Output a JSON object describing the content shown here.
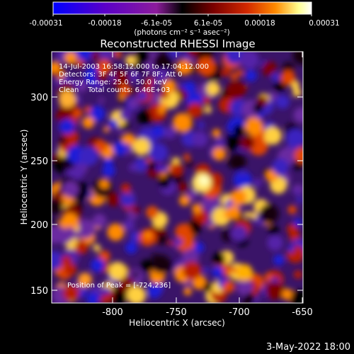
{
  "colorbar": {
    "tick_labels": [
      "-0.00031",
      "-0.00018",
      "-6.1e-05",
      "6.1e-05",
      "0.00018",
      "0.00031"
    ],
    "units_label": "(photons cm⁻² s⁻¹ asec⁻²)",
    "colormap": [
      "#0000ff",
      "#5a00c8",
      "#8c1c9c",
      "#000000",
      "#7a0000",
      "#d22800",
      "#ff8a00",
      "#ffff90",
      "#ffffff"
    ]
  },
  "image": {
    "title": "Reconstructed RHESSI Image",
    "annotation_lines": [
      "14-Jul-2003 16:58:12.000 to 17:04:12.000",
      "Detectors: 3F 4F 5F 6F 7F 8F; Att 0",
      "Energy Range: 25.0 - 50.0 keV",
      "Clean    Total counts: 6.46E+03"
    ],
    "peak_label": "Position of Peak = [-724,236]",
    "x_axis_label": "Heliocentric X (arcsec)",
    "y_axis_label": "Heliocentric Y (arcsec)",
    "x_ticks": [
      "-800",
      "-750",
      "-700",
      "-650"
    ],
    "y_ticks": [
      "300",
      "250",
      "200",
      "150"
    ],
    "x_range": [
      -845,
      -647
    ],
    "y_range": [
      141,
      341
    ]
  },
  "footer": {
    "date_label": "3-May-2022 18:00"
  }
}
